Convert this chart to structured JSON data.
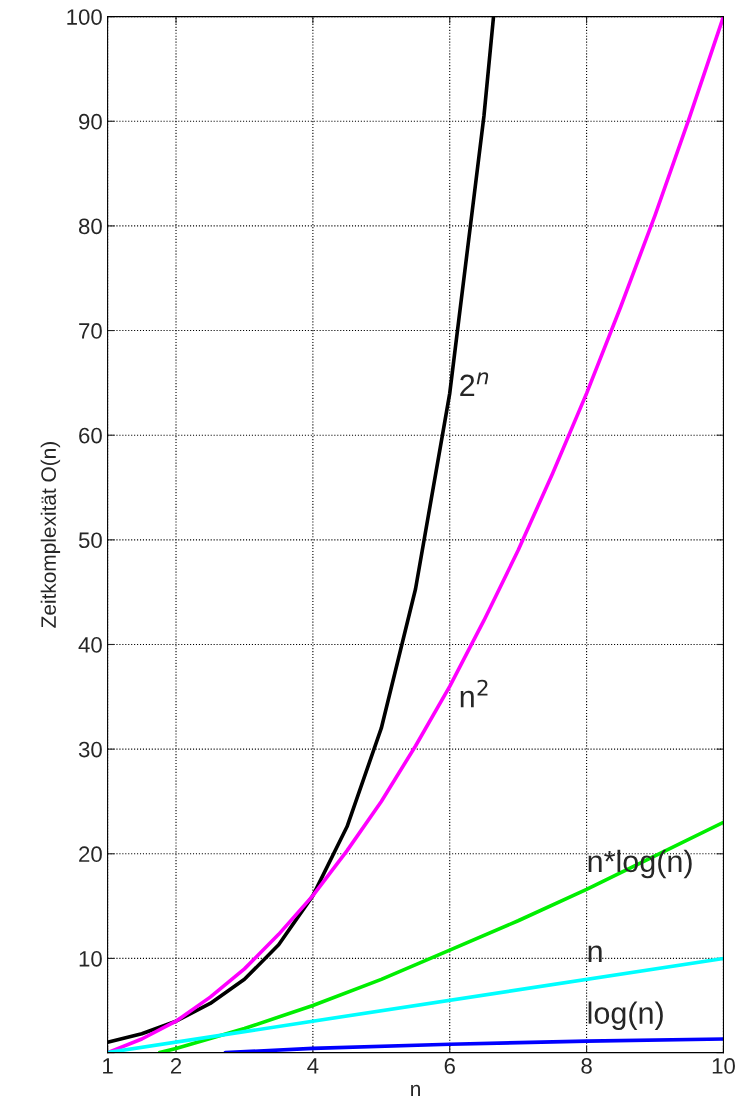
{
  "chart_data": {
    "type": "line",
    "xlabel": "n",
    "ylabel": "Zeitkomplexität O(n)",
    "xlim": [
      1,
      10
    ],
    "ylim": [
      1,
      100
    ],
    "xticks": [
      1,
      2,
      4,
      6,
      8,
      10
    ],
    "yticks": [
      {
        "value": 1,
        "label": null
      },
      10,
      20,
      30,
      40,
      50,
      60,
      70,
      80,
      90,
      100
    ],
    "grid": true,
    "marker": "none",
    "line_style": "solid",
    "series": [
      {
        "name": "2$^{n}$",
        "color": "#000000",
        "x": [
          1,
          1.5,
          2,
          2.5,
          3,
          3.5,
          4,
          4.5,
          5,
          5.5,
          6,
          6.5,
          6.64
        ],
        "values": [
          2,
          2.8,
          4,
          5.7,
          8,
          11.3,
          16,
          22.6,
          32,
          45.3,
          64,
          90.5,
          100
        ]
      },
      {
        "name": "n$^{2}$",
        "color": "#ff00ff",
        "x": [
          1,
          1.5,
          2,
          2.5,
          3,
          3.5,
          4,
          4.5,
          5,
          5.5,
          6,
          6.5,
          7,
          7.5,
          8,
          8.5,
          9,
          9.5,
          10
        ],
        "values": [
          1,
          2.3,
          4,
          6.3,
          9,
          12.3,
          16,
          20.3,
          25,
          30.3,
          36,
          42.3,
          49,
          56.3,
          64,
          72.3,
          81,
          90.3,
          100
        ]
      },
      {
        "name": "n*log(n)",
        "color": "#00ee00",
        "x": [
          1.76,
          2,
          3,
          4,
          5,
          6,
          7,
          8,
          9,
          10
        ],
        "values": [
          1,
          1.4,
          3.3,
          5.5,
          8,
          10.8,
          13.6,
          16.6,
          19.8,
          23
        ]
      },
      {
        "name": "n",
        "color": "#00ffff",
        "x": [
          1,
          10
        ],
        "values": [
          1,
          10
        ]
      },
      {
        "name": "log(n)",
        "color": "#0000ff",
        "x": [
          2.72,
          4,
          6,
          8,
          10
        ],
        "values": [
          1,
          1.4,
          1.8,
          2.1,
          2.3
        ]
      }
    ]
  }
}
